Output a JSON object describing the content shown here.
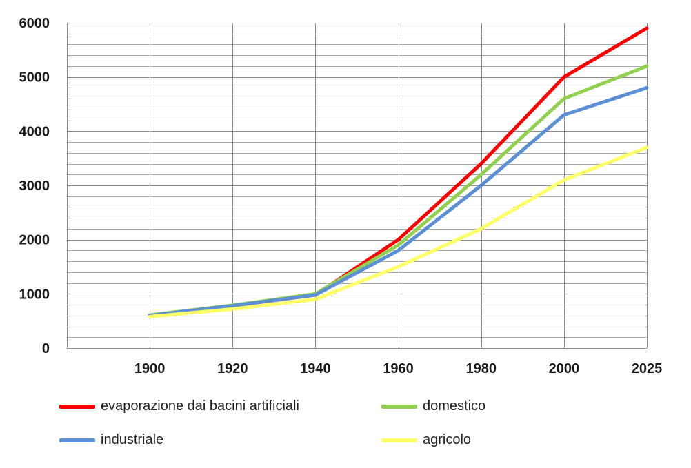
{
  "chart_data": {
    "type": "line",
    "title": "",
    "xlabel": "",
    "ylabel": "",
    "categories": [
      "1900",
      "1920",
      "1940",
      "1960",
      "1980",
      "2000",
      "2025"
    ],
    "x_axis_extra_leading_category": true,
    "ylim": [
      0,
      6000
    ],
    "yticks": [
      0,
      1000,
      2000,
      3000,
      4000,
      5000,
      6000
    ],
    "ytick_labels": [
      "0",
      "1000",
      "2000",
      "3000",
      "4000",
      "5000",
      "6000"
    ],
    "minor_gridlines_per_major": 5,
    "grid": true,
    "legend_position": "bottom",
    "series": [
      {
        "name": "evaporazione dai bacini artificiali",
        "color": "#ff0000",
        "values": [
          600,
          780,
          980,
          2000,
          3400,
          5000,
          5900
        ]
      },
      {
        "name": "domestico",
        "color": "#92d050",
        "values": [
          610,
          790,
          1000,
          1900,
          3200,
          4600,
          5200
        ]
      },
      {
        "name": "industriale",
        "color": "#5b8fd6",
        "values": [
          600,
          780,
          980,
          1800,
          3000,
          4300,
          4800
        ]
      },
      {
        "name": "agricolo",
        "color": "#ffff66",
        "values": [
          580,
          720,
          900,
          1500,
          2200,
          3100,
          3700
        ]
      }
    ]
  }
}
